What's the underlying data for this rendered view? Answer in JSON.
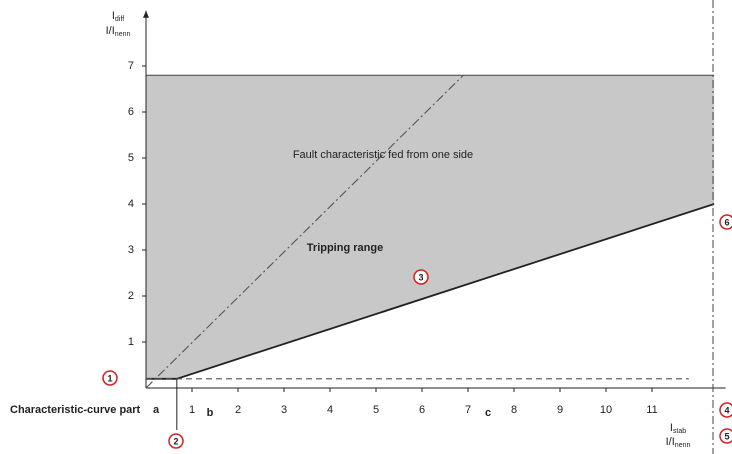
{
  "chart_data": {
    "type": "line",
    "ylabel": [
      {
        "main": "I",
        "sub": "diff"
      },
      {
        "main": "I/I",
        "sub": "nenn"
      }
    ],
    "xlabel": [
      {
        "main": "I",
        "sub": "stab"
      },
      {
        "main": "I/I",
        "sub": "nenn"
      }
    ],
    "xlim": [
      0,
      12.6
    ],
    "ylim": [
      0,
      8.2
    ],
    "xticks": [
      1,
      2,
      3,
      4,
      5,
      6,
      7,
      8,
      9,
      10,
      11
    ],
    "yticks": [
      1,
      2,
      3,
      4,
      5,
      6,
      7
    ],
    "fill_top": 6.8,
    "fill_color": "#c8c8c8",
    "series": [
      {
        "x": [
          0,
          0.67,
          12.35
        ],
        "values": [
          0.2,
          0.2,
          4.0
        ],
        "color": "#222222",
        "dash": "solid"
      },
      {
        "x": [
          0,
          6.9
        ],
        "values": [
          0,
          6.8
        ],
        "color": "#555555",
        "dash": "dash-dot"
      },
      {
        "x": [
          0,
          11.8
        ],
        "values": [
          0.2,
          0.2
        ],
        "color": "#555555",
        "dash": "dashed"
      }
    ],
    "annotations": [
      "Fault characteristic fed from one side",
      "Tripping range",
      "Characteristic-curve part",
      "a",
      "b",
      "c"
    ],
    "markers": [
      "1",
      "2",
      "3",
      "4",
      "5",
      "6"
    ]
  }
}
